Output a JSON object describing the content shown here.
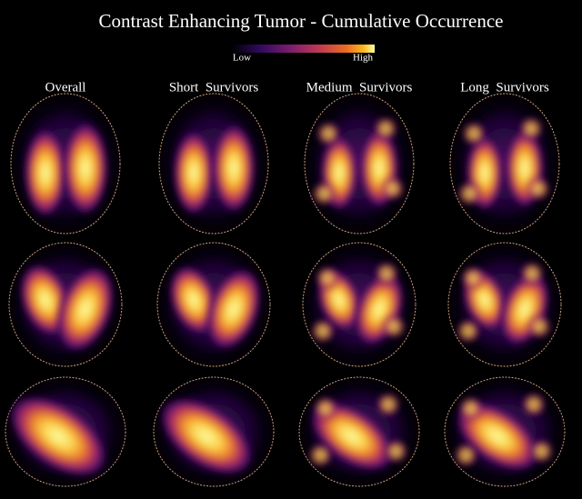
{
  "title": "Contrast Enhancing Tumor - Cumulative Occurrence",
  "colorbar": {
    "low": "Low",
    "high": "High"
  },
  "columns": [
    "Overall",
    "Short  Survivors",
    "Medium  Survivors",
    "Long  Survivors"
  ]
}
